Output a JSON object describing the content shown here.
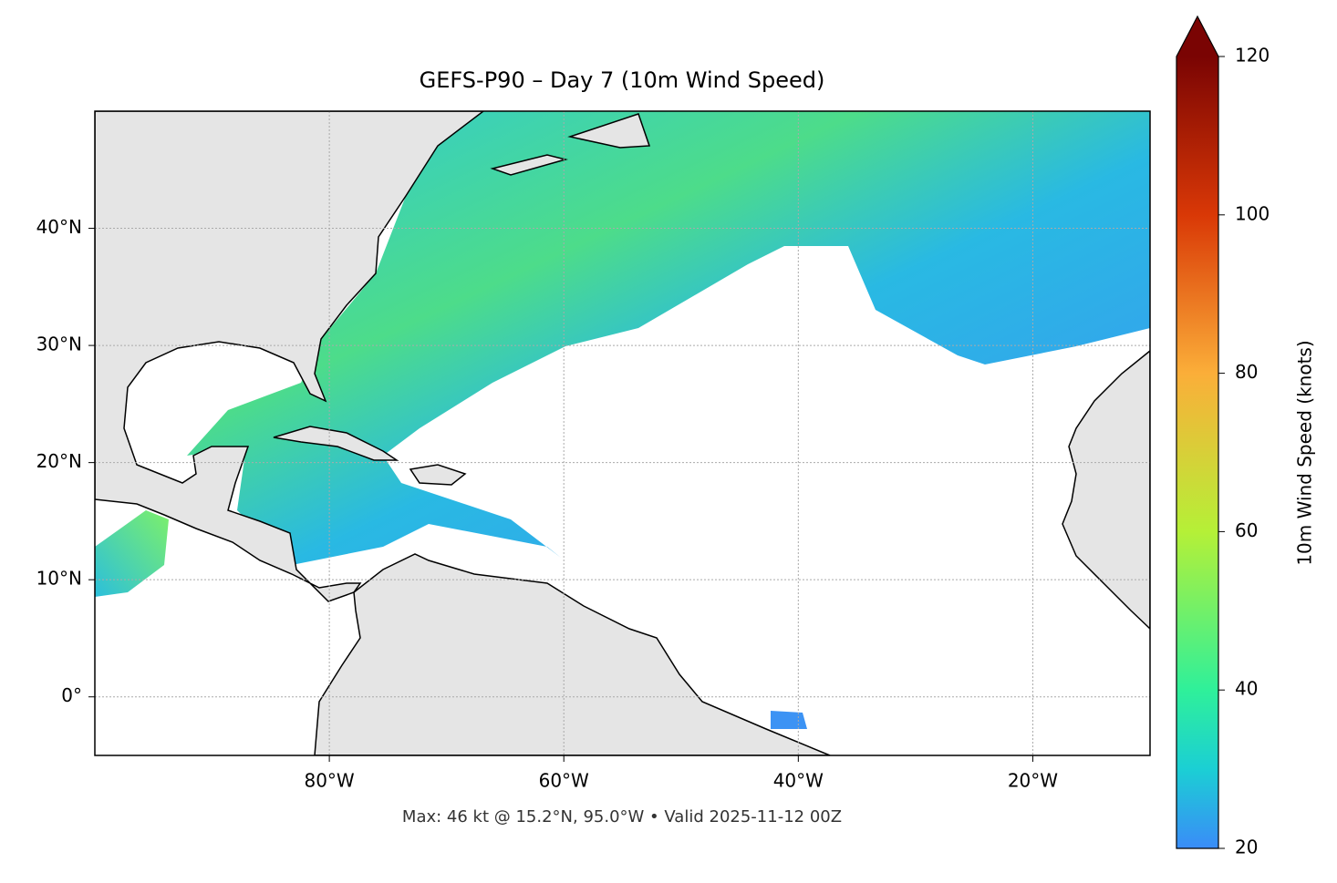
{
  "title": "GEFS-P90 – Day 7 (10m Wind Speed)",
  "map": {
    "xlim": [
      -100,
      -10
    ],
    "ylim": [
      -5,
      50
    ],
    "xticks": [
      {
        "value": -80,
        "label": "80°W"
      },
      {
        "value": -60,
        "label": "60°W"
      },
      {
        "value": -40,
        "label": "40°W"
      },
      {
        "value": -20,
        "label": "20°W"
      }
    ],
    "yticks": [
      {
        "value": 0,
        "label": "0°"
      },
      {
        "value": 10,
        "label": "10°N"
      },
      {
        "value": 20,
        "label": "20°N"
      },
      {
        "value": 30,
        "label": "30°N"
      },
      {
        "value": 40,
        "label": "40°N"
      }
    ],
    "grid": true
  },
  "colorbar": {
    "label": "10m Wind Speed (knots)",
    "lim": [
      20,
      120
    ],
    "ticks": [
      20,
      40,
      60,
      80,
      100,
      120
    ]
  },
  "footnote": "Max: 46 kt @ 15.2°N, 95.0°W • Valid 2025-11-12 00Z"
}
